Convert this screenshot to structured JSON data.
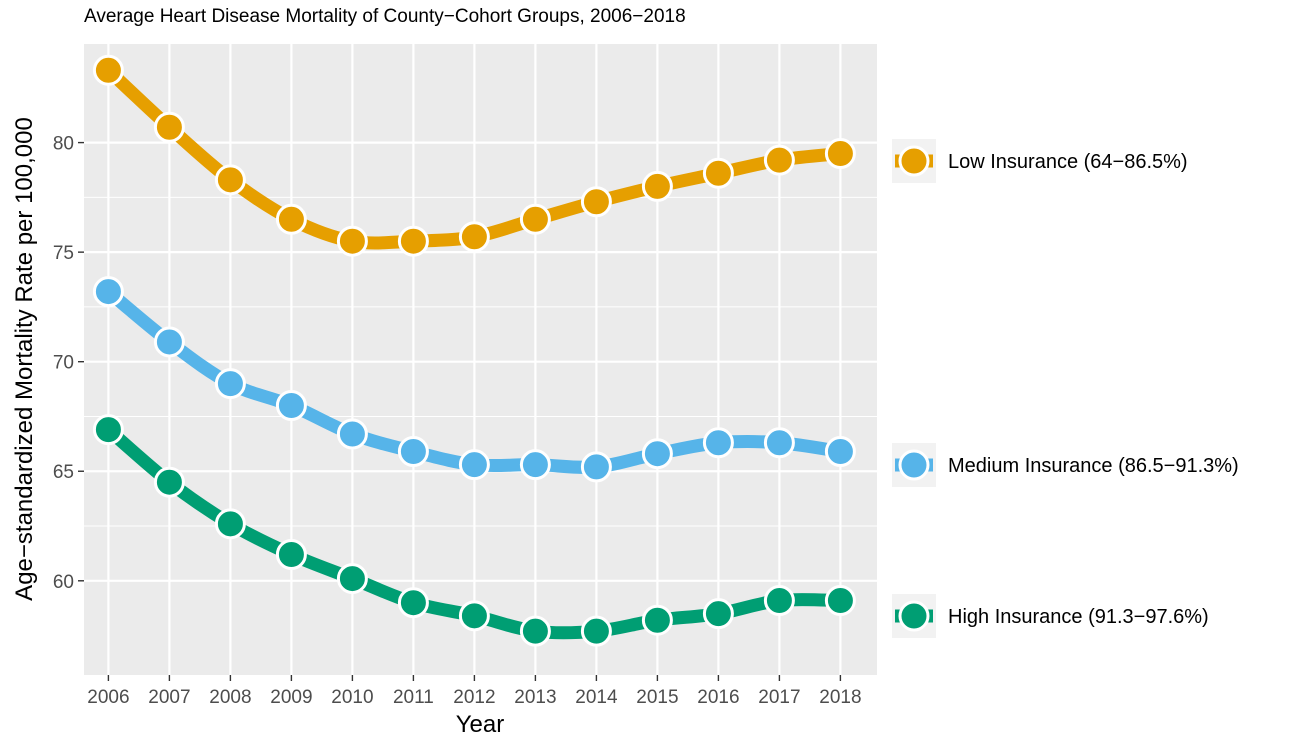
{
  "chart_data": {
    "type": "line",
    "title": "Average Heart Disease Mortality of County−Cohort Groups, 2006−2018",
    "xlabel": "Year",
    "ylabel": "Age−standardized Mortality Rate per 100,000",
    "x": [
      2006,
      2007,
      2008,
      2009,
      2010,
      2011,
      2012,
      2013,
      2014,
      2015,
      2016,
      2017,
      2018
    ],
    "x_tick_labels": [
      "2006",
      "2007",
      "2008",
      "2009",
      "2010",
      "2011",
      "2012",
      "2013",
      "2014",
      "2015",
      "2016",
      "2017",
      "2018"
    ],
    "y_ticks": [
      60,
      65,
      70,
      75,
      80
    ],
    "y_tick_labels": [
      "60",
      "65",
      "70",
      "75",
      "80"
    ],
    "ylim": [
      55.7,
      84.5
    ],
    "xlim": [
      2005.6,
      2018.6
    ],
    "grid": true,
    "legend_position": "right",
    "series": [
      {
        "name": "Low Insurance (64−86.5%)",
        "color": "#E69F00",
        "values": [
          83.3,
          80.7,
          78.3,
          76.5,
          75.5,
          75.5,
          75.7,
          76.5,
          77.3,
          78.0,
          78.6,
          79.2,
          79.5
        ]
      },
      {
        "name": "Medium Insurance (86.5−91.3%)",
        "color": "#56B4E9",
        "values": [
          73.2,
          70.9,
          69.0,
          68.0,
          66.7,
          65.9,
          65.3,
          65.3,
          65.2,
          65.8,
          66.3,
          66.3,
          65.9
        ]
      },
      {
        "name": "High Insurance (91.3−97.6%)",
        "color": "#009E73",
        "values": [
          66.9,
          64.5,
          62.6,
          61.2,
          60.1,
          59.0,
          58.4,
          57.7,
          57.7,
          58.2,
          58.5,
          59.1,
          59.1
        ]
      }
    ]
  }
}
